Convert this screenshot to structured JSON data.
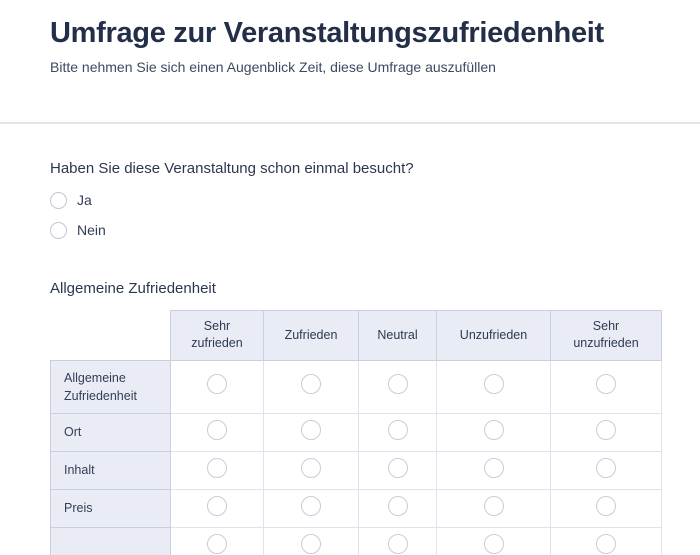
{
  "form": {
    "title": "Umfrage zur Veranstaltungszufriedenheit",
    "subtitle": "Bitte nehmen Sie sich einen Augenblick Zeit, diese Umfrage auszufüllen"
  },
  "visited_question": {
    "label": "Haben Sie diese Veranstaltung schon einmal besucht?",
    "options": [
      {
        "label": "Ja",
        "checked": false
      },
      {
        "label": "Nein",
        "checked": false
      }
    ]
  },
  "matrix_question": {
    "heading": "Allgemeine Zufriedenheit",
    "columns": [
      "Sehr zufrieden",
      "Zufrieden",
      "Neutral",
      "Unzufrieden",
      "Sehr unzufrieden"
    ],
    "rows": [
      {
        "label": "Allgemeine Zufriedenheit",
        "selected": null
      },
      {
        "label": "Ort",
        "selected": null
      },
      {
        "label": "Inhalt",
        "selected": null
      },
      {
        "label": "Preis",
        "selected": null
      },
      {
        "label": "",
        "selected": null,
        "partially_visible": true
      }
    ]
  },
  "colors": {
    "title_text": "#232e48",
    "body_text": "#2b374f",
    "matrix_cell_bg": "#e9ecf5",
    "matrix_header_border": "#c9cfe0",
    "matrix_cell_border": "#dfe3ee",
    "radio_border": "#c2c7d4",
    "divider": "#e3e5ee"
  }
}
